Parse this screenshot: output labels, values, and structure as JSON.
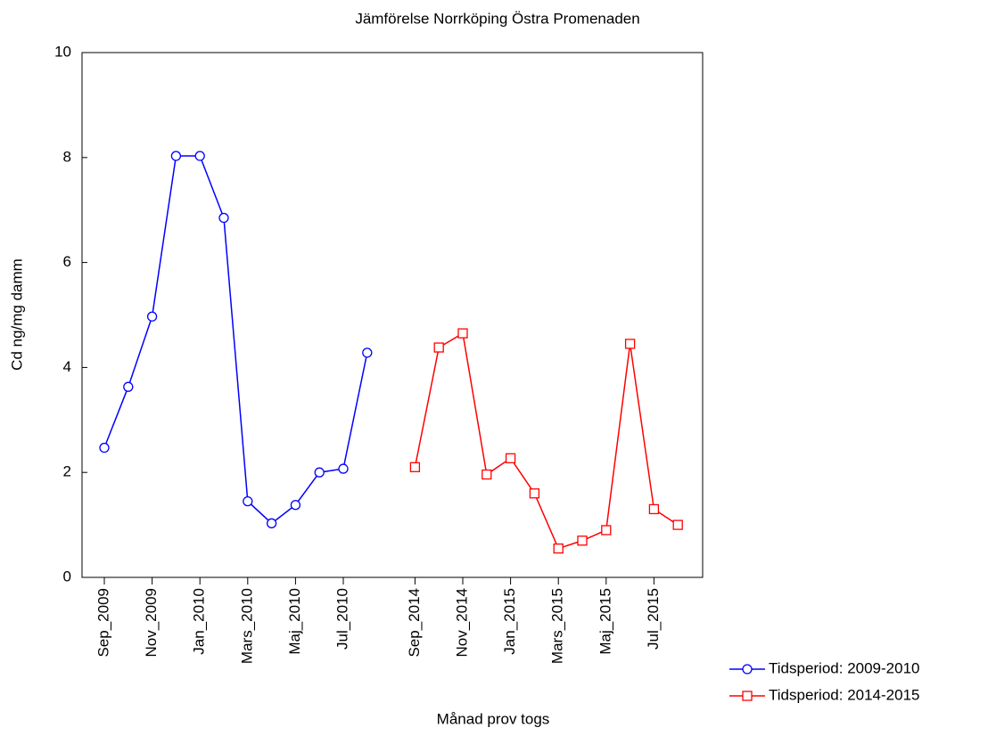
{
  "chart_data": {
    "type": "line",
    "title": "Jämförelse Norrköping Östra Promenaden",
    "x_label": "Månad prov togs",
    "y_label": "Cd ng/mg damm",
    "categories": [
      "Sep_2009",
      null,
      "Nov_2009",
      null,
      "Jan_2010",
      null,
      "Mars_2010",
      null,
      "Maj_2010",
      null,
      "Jul_2010",
      null,
      null,
      "Sep_2014",
      null,
      "Nov_2014",
      null,
      "Jan_2015",
      null,
      "Mars_2015",
      null,
      "Maj_2015",
      null,
      "Jul_2015",
      null
    ],
    "series": [
      {
        "name": "Tidsperiod: 2009-2010",
        "color": "#0000ff",
        "marker": "circle",
        "values": [
          2.47,
          3.63,
          4.97,
          8.03,
          8.03,
          6.85,
          1.45,
          1.03,
          1.38,
          2.0,
          2.07,
          4.28,
          null,
          null,
          null,
          null,
          null,
          null,
          null,
          null,
          null,
          null,
          null,
          null,
          null
        ]
      },
      {
        "name": "Tidsperiod: 2014-2015",
        "color": "#ff0000",
        "marker": "square",
        "values": [
          null,
          null,
          null,
          null,
          null,
          null,
          null,
          null,
          null,
          null,
          null,
          null,
          null,
          2.1,
          4.38,
          4.65,
          1.96,
          2.27,
          1.6,
          0.55,
          0.7,
          0.9,
          4.45,
          1.3,
          1.0
        ]
      }
    ],
    "ylim": [
      0,
      10
    ],
    "yticks": [
      0,
      2,
      4,
      6,
      8,
      10
    ],
    "grid": false
  }
}
